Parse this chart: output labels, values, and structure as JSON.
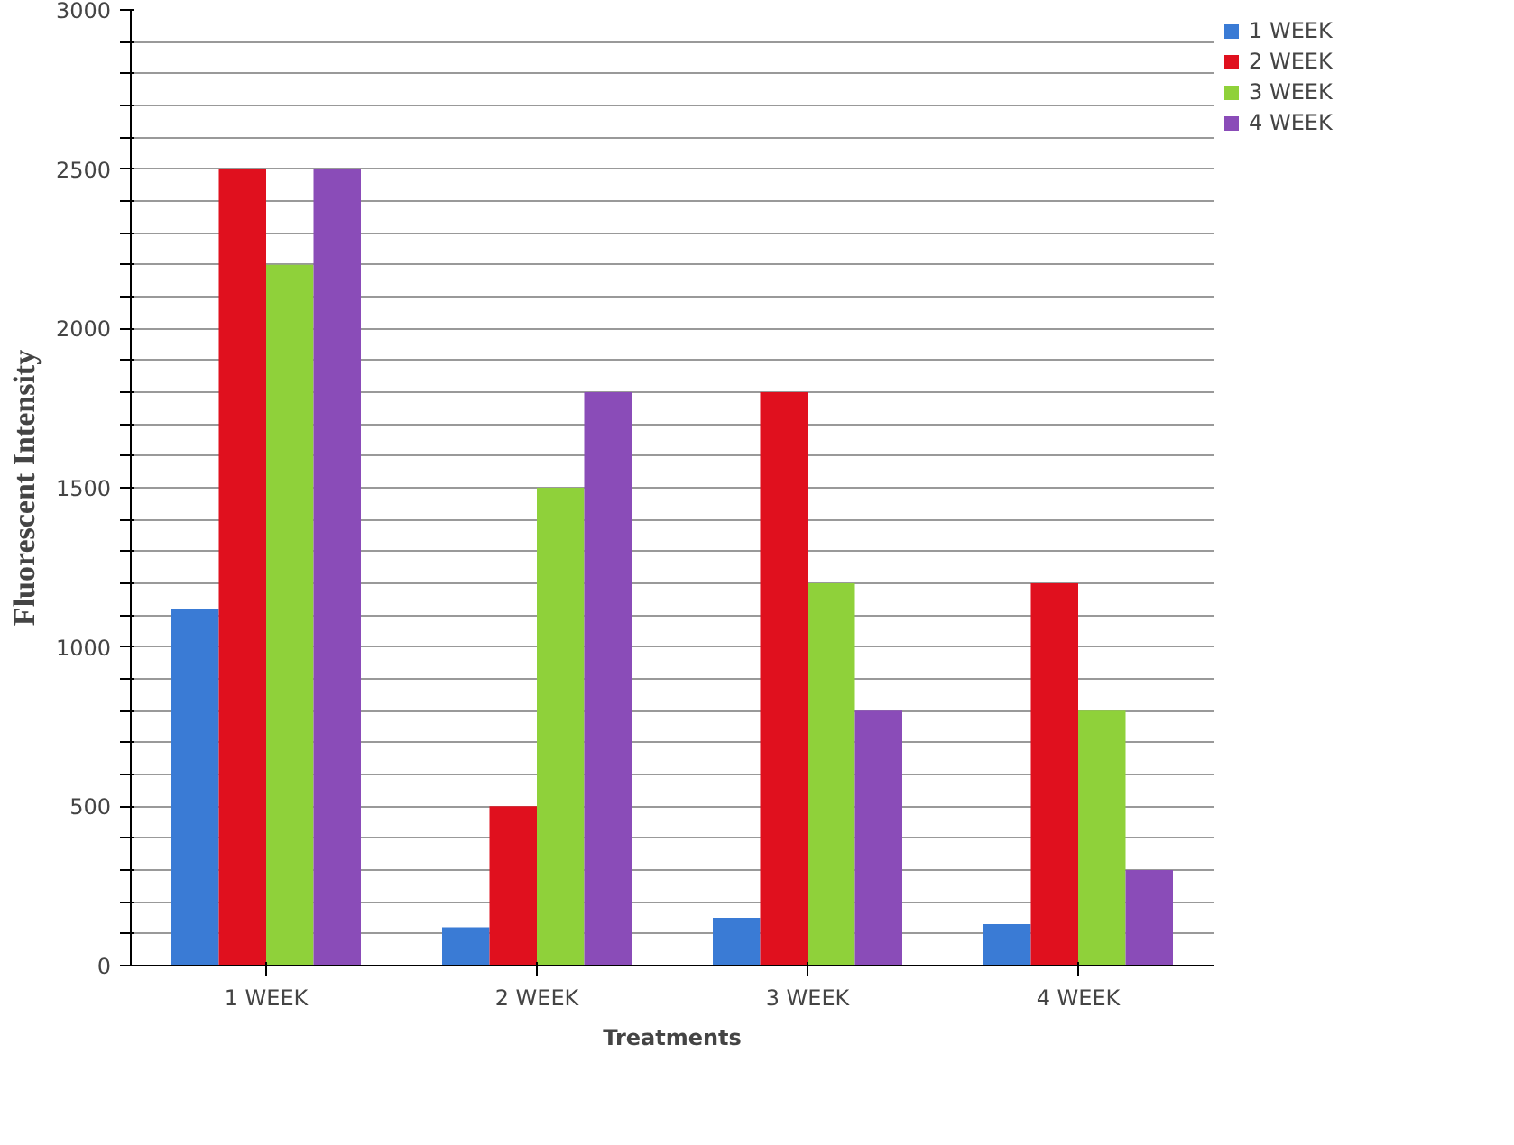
{
  "chart_data": {
    "type": "bar",
    "xlabel": "Treatments",
    "ylabel": "Fluorescent Intensity",
    "categories": [
      "1 WEEK",
      "2 WEEK",
      "3 WEEK",
      "4 WEEK"
    ],
    "series": [
      {
        "name": "1 WEEK",
        "color": "#3a7bd5",
        "values": [
          1120,
          120,
          150,
          130
        ]
      },
      {
        "name": "2 WEEK",
        "color": "#e0101e",
        "values": [
          2500,
          500,
          1800,
          1200
        ]
      },
      {
        "name": "3 WEEK",
        "color": "#8fd13a",
        "values": [
          2200,
          1500,
          1200,
          800
        ]
      },
      {
        "name": "4 WEEK",
        "color": "#8a4cb8",
        "values": [
          2500,
          1800,
          800,
          300
        ]
      }
    ],
    "ylim": [
      0,
      3000
    ],
    "yticks": [
      0,
      {
        "value": 100,
        "label": null
      },
      {
        "value": 200,
        "label": null
      },
      {
        "value": 300,
        "label": null
      },
      {
        "value": 400,
        "label": null
      },
      500,
      {
        "value": 600,
        "label": null
      },
      {
        "value": 700,
        "label": null
      },
      {
        "value": 800,
        "label": null
      },
      {
        "value": 900,
        "label": null
      },
      1000,
      {
        "value": 1100,
        "label": null
      },
      {
        "value": 1200,
        "label": null
      },
      {
        "value": 1300,
        "label": null
      },
      {
        "value": 1400,
        "label": null
      },
      1500,
      {
        "value": 1600,
        "label": null
      },
      {
        "value": 1700,
        "label": null
      },
      {
        "value": 1800,
        "label": null
      },
      {
        "value": 1900,
        "label": null
      },
      2000,
      {
        "value": 2100,
        "label": null
      },
      {
        "value": 2200,
        "label": null
      },
      {
        "value": 2300,
        "label": null
      },
      {
        "value": 2400,
        "label": null
      },
      2500,
      {
        "value": 2600,
        "label": null
      },
      {
        "value": 2700,
        "label": null
      },
      {
        "value": 2800,
        "label": null
      },
      {
        "value": 2900,
        "label": null
      },
      3000
    ],
    "grid": "y",
    "legend": "right"
  }
}
